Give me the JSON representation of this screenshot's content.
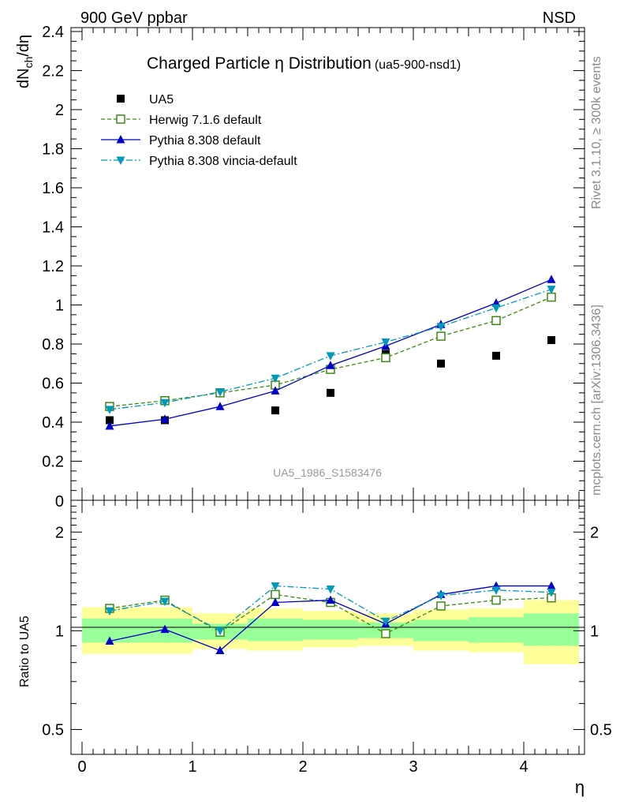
{
  "header": {
    "left": "900 GeV ppbar",
    "right": "NSD"
  },
  "side_labels": {
    "rivet": "Rivet 3.1.10, ≥ 300k events",
    "mcplots": "mcplots.cern.ch [arXiv:1306.3436]"
  },
  "chart_data": [
    {
      "type": "scatter",
      "title": "Charged Particle η Distribution",
      "title_suffix": "(ua5-900-nsd1)",
      "ylabel": "dN_ch/dη",
      "xlim": [
        -0.1,
        4.55
      ],
      "ylim": [
        0,
        2.42
      ],
      "yticks": [
        0.2,
        0.4,
        0.6,
        0.8,
        1,
        1.2,
        1.4,
        1.6,
        1.8,
        2,
        2.2,
        2.4
      ],
      "ytick_labels": [
        "0.2",
        "0.4",
        "0.6",
        "0.8",
        "1",
        "1.2",
        "1.4",
        "1.6",
        "1.8",
        "2",
        "2.2",
        "2.4"
      ],
      "ytick_zero_label": "0",
      "legend_position": "top-left",
      "watermark": "UA5_1986_S1583476",
      "x": [
        0.25,
        0.75,
        1.25,
        1.75,
        2.25,
        2.75,
        3.25,
        3.75,
        4.25
      ],
      "series": [
        {
          "name": "UA5",
          "color": "#000000",
          "style": "data",
          "marker": "square",
          "values": [
            0.41,
            0.41,
            0.55,
            0.46,
            0.55,
            0.75,
            0.7,
            0.74,
            0.82
          ]
        },
        {
          "name": "Herwig 7.1.6 default",
          "color": "#3a8c10",
          "style": "dashed",
          "marker": "open-square",
          "values": [
            0.48,
            0.51,
            0.55,
            0.59,
            0.67,
            0.73,
            0.84,
            0.92,
            1.04
          ]
        },
        {
          "name": "Pythia 8.308 default",
          "color": "#0000cc",
          "style": "solid",
          "marker": "triangle-up",
          "values": [
            0.38,
            0.415,
            0.48,
            0.56,
            0.69,
            0.79,
            0.9,
            1.01,
            1.13
          ]
        },
        {
          "name": "Pythia 8.308 vincia-default",
          "color": "#0099bb",
          "style": "dashdot",
          "marker": "triangle-down",
          "values": [
            0.465,
            0.5,
            0.555,
            0.625,
            0.74,
            0.81,
            0.89,
            0.985,
            1.08
          ]
        }
      ]
    },
    {
      "type": "line",
      "ylabel": "Ratio to UA5",
      "xlabel": "η",
      "xlim": [
        -0.1,
        4.55
      ],
      "ylim": [
        0.42,
        2.5
      ],
      "log_y": true,
      "yticks": [
        0.5,
        1,
        2
      ],
      "ytick_labels": [
        "0.5",
        "1",
        "2"
      ],
      "xticks": [
        0,
        1,
        2,
        3,
        4
      ],
      "xtick_labels": [
        "0",
        "1",
        "2",
        "3",
        "4"
      ],
      "x": [
        0.25,
        0.75,
        1.25,
        1.75,
        2.25,
        2.75,
        3.25,
        3.75,
        4.25
      ],
      "bands": {
        "edges": [
          0,
          1,
          1.5,
          2,
          2.5,
          3,
          3.5,
          4,
          4.5
        ],
        "green_lo": [
          0.92,
          0.94,
          0.93,
          0.94,
          0.95,
          0.93,
          0.92,
          0.9
        ],
        "green_hi": [
          1.09,
          1.05,
          1.09,
          1.08,
          1.06,
          1.08,
          1.1,
          1.13
        ],
        "yellow_lo": [
          0.85,
          0.88,
          0.87,
          0.89,
          0.9,
          0.87,
          0.86,
          0.79
        ],
        "yellow_hi": [
          1.18,
          1.13,
          1.17,
          1.15,
          1.13,
          1.16,
          1.17,
          1.24
        ]
      },
      "series": [
        {
          "name": "Herwig 7.1.6 default",
          "color": "#3a8c10",
          "style": "dashed",
          "marker": "open-square",
          "values": [
            1.17,
            1.24,
            0.99,
            1.29,
            1.22,
            0.98,
            1.19,
            1.24,
            1.26
          ]
        },
        {
          "name": "Pythia 8.308 default",
          "color": "#0000cc",
          "style": "solid",
          "marker": "triangle-up",
          "values": [
            0.93,
            1.01,
            0.87,
            1.22,
            1.24,
            1.05,
            1.29,
            1.37,
            1.37
          ]
        },
        {
          "name": "Pythia 8.308 vincia-default",
          "color": "#0099bb",
          "style": "dashdot",
          "marker": "triangle-down",
          "values": [
            1.15,
            1.23,
            1.0,
            1.37,
            1.34,
            1.07,
            1.28,
            1.33,
            1.31
          ]
        }
      ]
    }
  ]
}
